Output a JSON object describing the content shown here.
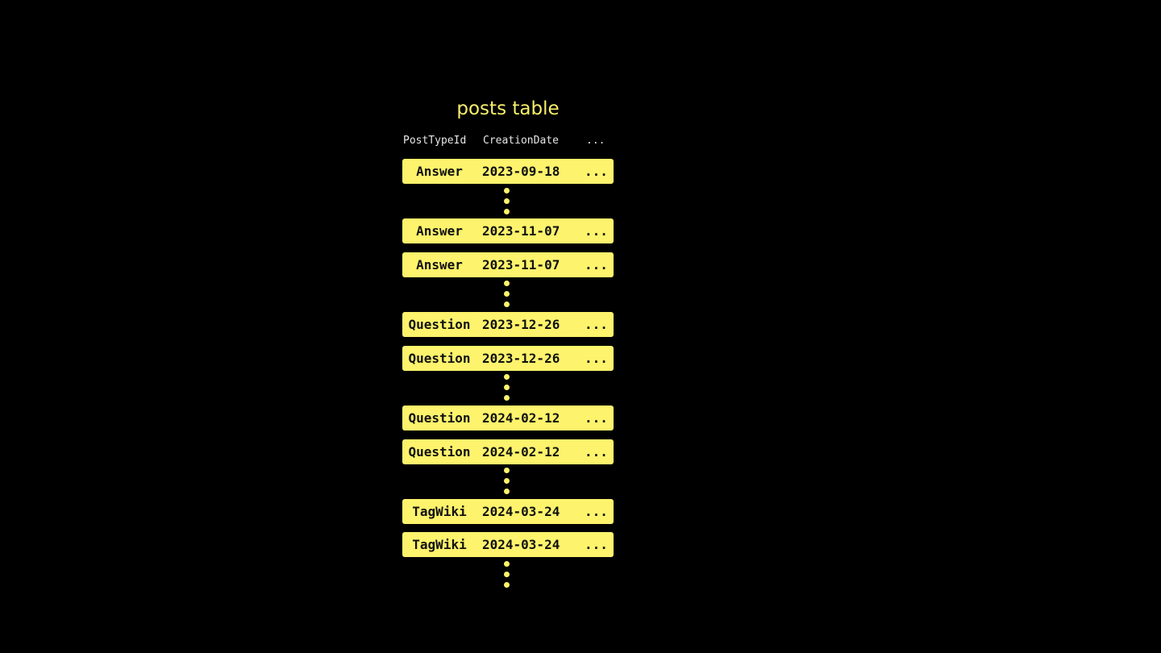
{
  "title": "posts table",
  "columns": [
    "PostTypeId",
    "CreationDate",
    "..."
  ],
  "rows": [
    {
      "type": "Answer",
      "date": "2023-09-18",
      "more": "..."
    },
    {
      "type": "Answer",
      "date": "2023-11-07",
      "more": "..."
    },
    {
      "type": "Answer",
      "date": "2023-11-07",
      "more": "..."
    },
    {
      "type": "Question",
      "date": "2023-12-26",
      "more": "..."
    },
    {
      "type": "Question",
      "date": "2023-12-26",
      "more": "..."
    },
    {
      "type": "Question",
      "date": "2024-02-12",
      "more": "..."
    },
    {
      "type": "Question",
      "date": "2024-02-12",
      "more": "..."
    },
    {
      "type": "TagWiki",
      "date": "2024-03-24",
      "more": "..."
    },
    {
      "type": "TagWiki",
      "date": "2024-03-24",
      "more": "..."
    }
  ],
  "colors": {
    "background": "#000000",
    "row": "#fdf36c",
    "title": "#f7ef6c"
  }
}
